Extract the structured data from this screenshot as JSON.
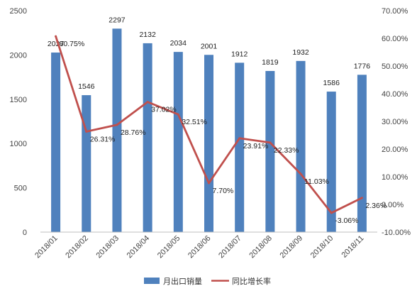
{
  "chart_data": {
    "type": "bar",
    "categories": [
      "2018/01",
      "2018/02",
      "2018/03",
      "2018/04",
      "2018/05",
      "2018/06",
      "2018/07",
      "2018/08",
      "2018/09",
      "2018/10",
      "2018/11"
    ],
    "series": [
      {
        "name": "月出口销量",
        "type": "bar",
        "axis": "left",
        "color": "#4f81bd",
        "values": [
          2027,
          1546,
          2297,
          2132,
          2034,
          2001,
          1912,
          1819,
          1932,
          1586,
          1776
        ],
        "labels": [
          "2027",
          "1546",
          "2297",
          "2132",
          "2034",
          "2001",
          "1912",
          "1819",
          "1932",
          "1586",
          "1776"
        ]
      },
      {
        "name": "同比增长率",
        "type": "line",
        "axis": "right",
        "color": "#c0504d",
        "values": [
          60.75,
          26.31,
          28.76,
          37.02,
          32.51,
          7.7,
          23.91,
          22.33,
          11.03,
          -3.06,
          2.36
        ],
        "labels": [
          "60.75%",
          "26.31%",
          "28.76%",
          "37.02%",
          "32.51%",
          "7.70%",
          "23.91%",
          "22.33%",
          "11.03%",
          "-3.06%",
          "2.36%"
        ]
      }
    ],
    "title": "",
    "xlabel": "",
    "ylabel": "",
    "ylim": [
      0,
      2500
    ],
    "yticks": [
      "0",
      "500",
      "1000",
      "1500",
      "2000",
      "2500"
    ],
    "y2lim": [
      -10,
      70
    ],
    "y2ticks": [
      "-10.00%",
      "0.00%",
      "10.00%",
      "20.00%",
      "30.00%",
      "40.00%",
      "50.00%",
      "60.00%",
      "70.00%"
    ],
    "grid": false,
    "legend": "bottom"
  }
}
